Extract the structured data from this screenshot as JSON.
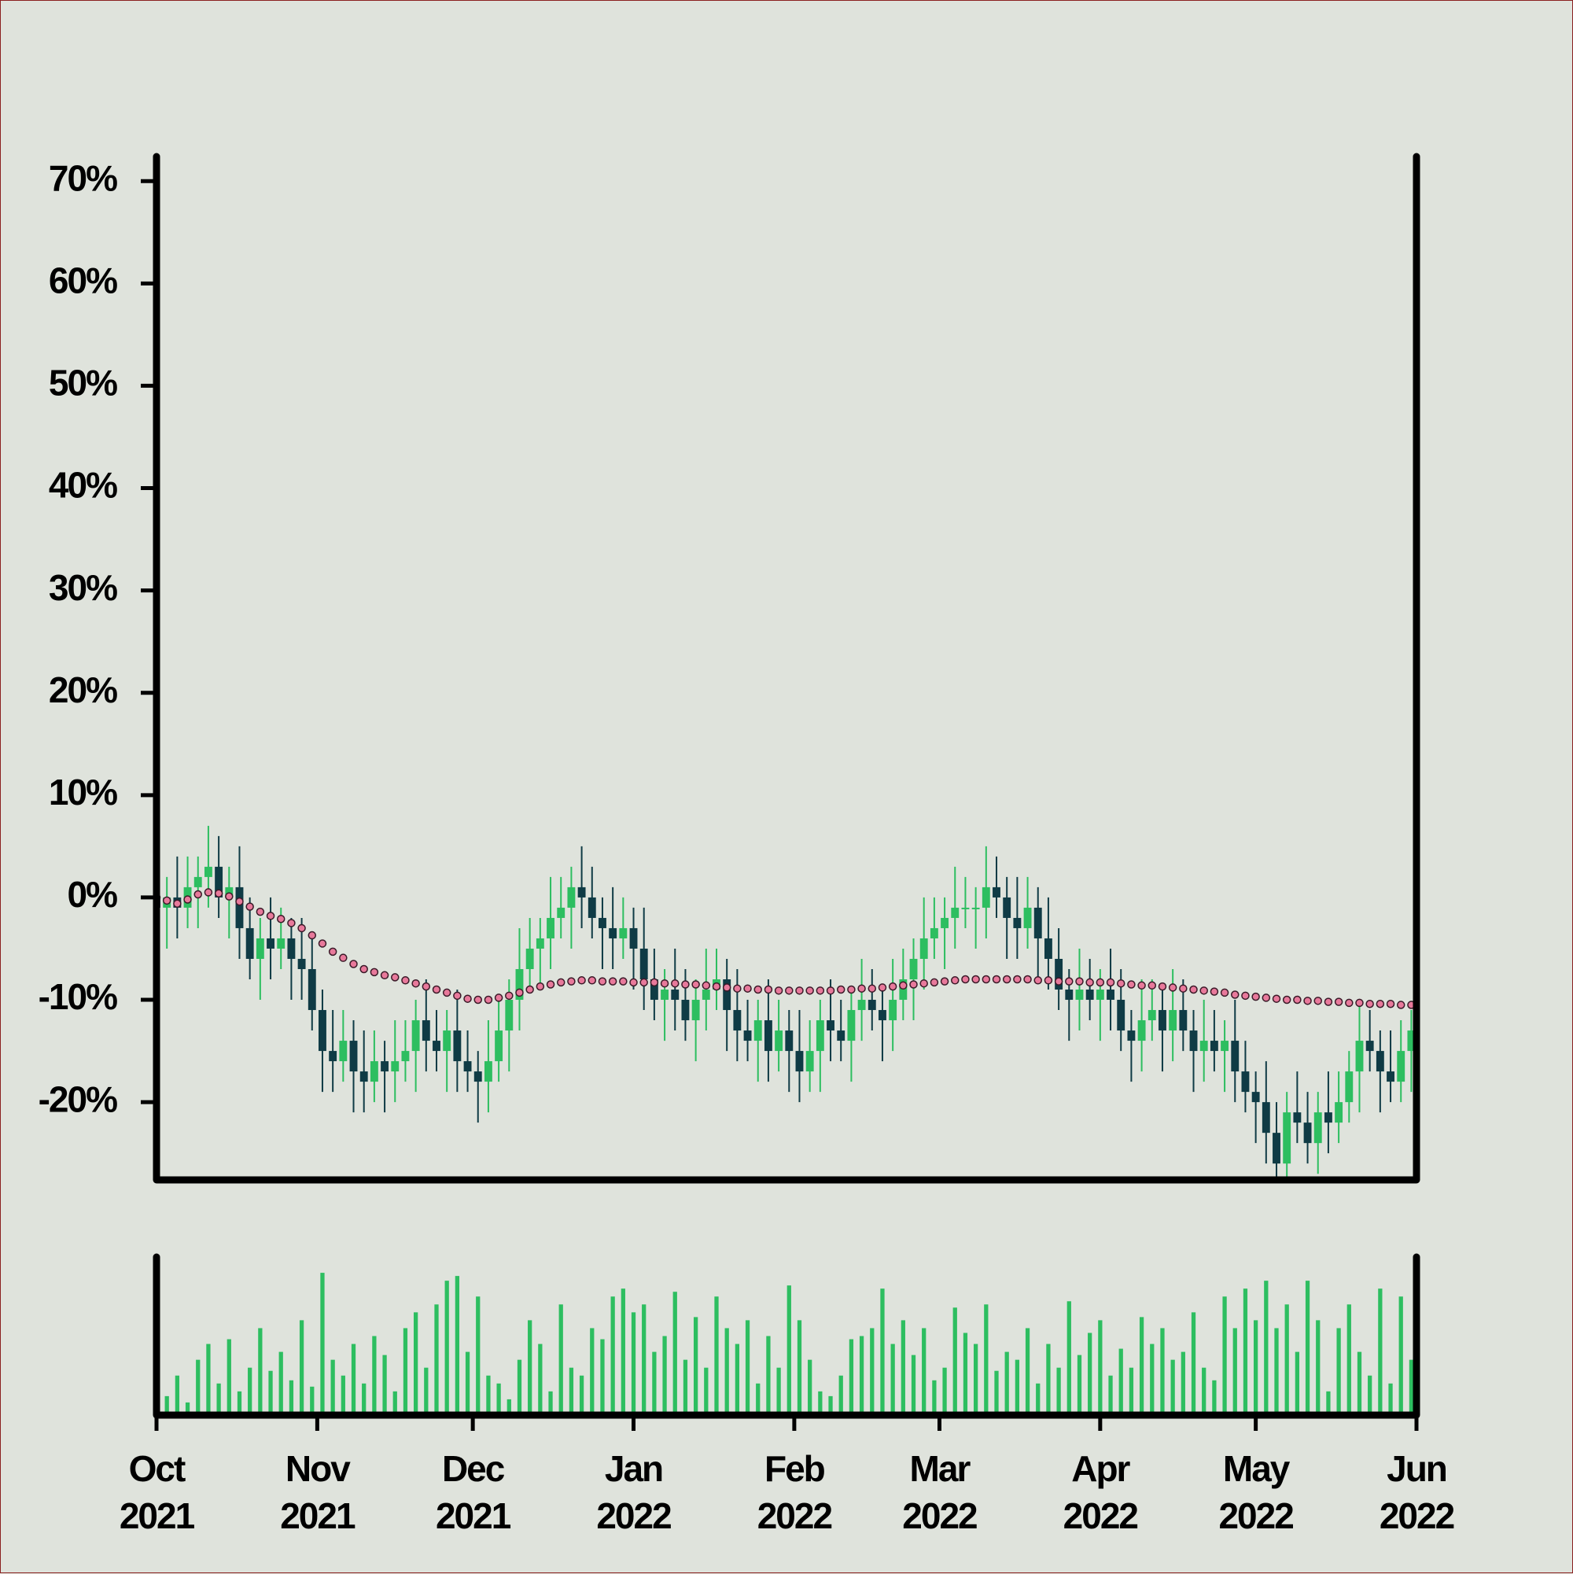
{
  "chart_data": [
    {
      "type": "candlestick",
      "x": [
        0,
        2,
        4,
        6,
        8,
        10,
        12,
        14,
        16,
        18,
        20,
        22,
        24,
        26,
        28,
        30,
        32,
        34,
        36,
        38,
        40,
        42,
        44,
        46,
        48,
        50,
        52,
        54,
        56,
        58,
        60,
        62,
        64,
        66,
        68,
        70,
        72,
        74,
        76,
        78,
        80,
        82,
        84,
        86,
        88,
        90,
        92,
        94,
        96,
        98,
        100,
        102,
        104,
        106,
        108,
        110,
        112,
        114,
        116,
        118,
        120,
        122,
        124,
        126,
        128,
        130,
        132,
        134,
        136,
        138,
        140,
        142,
        144,
        146,
        148,
        150,
        152,
        154,
        156,
        158,
        160,
        162,
        164,
        166,
        168,
        170,
        172,
        174,
        176,
        178,
        180,
        182,
        184,
        186,
        188,
        190,
        192,
        194,
        196,
        198,
        200,
        202,
        204,
        206,
        208,
        210,
        212,
        214,
        216,
        218,
        220,
        222,
        224,
        226,
        228,
        230,
        232,
        234,
        236,
        238,
        240,
        242
      ],
      "open": [
        0,
        -1,
        0,
        -1,
        1,
        2,
        3,
        0,
        1,
        -3,
        -6,
        -4,
        -5,
        -4,
        -6,
        -7,
        -11,
        -15,
        -16,
        -14,
        -17,
        -18,
        -16,
        -17,
        -16,
        -15,
        -12,
        -14,
        -15,
        -13,
        -16,
        -17,
        -18,
        -16,
        -13,
        -10,
        -7,
        -5,
        -4,
        -2,
        -1,
        1,
        0,
        -2,
        -3,
        -4,
        -3,
        -5,
        -8,
        -10,
        -9,
        -10,
        -12,
        -10,
        -9,
        -8,
        -11,
        -13,
        -14,
        -12,
        -15,
        -13,
        -15,
        -17,
        -15,
        -12,
        -13,
        -14,
        -11,
        -10,
        -11,
        -12,
        -10,
        -8,
        -6,
        -4,
        -3,
        -2,
        -1,
        -1,
        -1,
        1,
        0,
        -2,
        -3,
        -1,
        -4,
        -6,
        -9,
        -10,
        -9,
        -10,
        -9,
        -10,
        -13,
        -14,
        -12,
        -11,
        -13,
        -11,
        -13,
        -15,
        -14,
        -15,
        -14,
        -17,
        -19,
        -20,
        -23,
        -26,
        -21,
        -22,
        -24,
        -21,
        -22,
        -20,
        -17,
        -14,
        -15,
        -17,
        -18,
        -15
      ],
      "high": [
        3,
        2,
        4,
        4,
        4,
        7,
        6,
        3,
        5,
        0,
        -2,
        0,
        -1,
        -2,
        -2,
        -4,
        -9,
        -11,
        -11,
        -12,
        -13,
        -13,
        -14,
        -12,
        -12,
        -10,
        -8,
        -11,
        -11,
        -9,
        -13,
        -15,
        -12,
        -10,
        -8,
        -3,
        -2,
        -2,
        2,
        2,
        3,
        5,
        3,
        0,
        1,
        0,
        -1,
        -1,
        -5,
        -7,
        -5,
        -7,
        -8,
        -5,
        -5,
        -6,
        -7,
        -10,
        -10,
        -8,
        -10,
        -11,
        -11,
        -12,
        -10,
        -8,
        -10,
        -9,
        -6,
        -7,
        -9,
        -6,
        -5,
        -4,
        0,
        0,
        0,
        3,
        2,
        1,
        5,
        4,
        2,
        2,
        2,
        1,
        0,
        -3,
        -7,
        -5,
        -6,
        -7,
        -5,
        -7,
        -11,
        -8,
        -8,
        -9,
        -7,
        -8,
        -11,
        -10,
        -11,
        -12,
        -10,
        -14,
        -17,
        -16,
        -20,
        -19,
        -17,
        -19,
        -19,
        -17,
        -17,
        -15,
        -10,
        -11,
        -13,
        -13,
        -12,
        -11
      ],
      "low": [
        -3,
        -5,
        -4,
        -3,
        -3,
        -1,
        -2,
        -4,
        -6,
        -8,
        -10,
        -8,
        -7,
        -10,
        -10,
        -13,
        -19,
        -19,
        -18,
        -21,
        -21,
        -20,
        -21,
        -20,
        -18,
        -19,
        -17,
        -17,
        -19,
        -19,
        -19,
        -22,
        -21,
        -18,
        -17,
        -13,
        -9,
        -9,
        -7,
        -4,
        -5,
        -3,
        -4,
        -7,
        -7,
        -6,
        -9,
        -11,
        -12,
        -14,
        -13,
        -14,
        -16,
        -13,
        -11,
        -15,
        -16,
        -16,
        -18,
        -18,
        -17,
        -19,
        -20,
        -19,
        -19,
        -16,
        -16,
        -18,
        -14,
        -13,
        -16,
        -15,
        -12,
        -12,
        -9,
        -6,
        -7,
        -5,
        -3,
        -5,
        -4,
        -2,
        -6,
        -6,
        -5,
        -8,
        -9,
        -11,
        -14,
        -13,
        -12,
        -14,
        -13,
        -15,
        -18,
        -17,
        -14,
        -17,
        -16,
        -15,
        -19,
        -18,
        -17,
        -19,
        -20,
        -21,
        -24,
        -26,
        -28,
        -30,
        -24,
        -26,
        -27,
        -25,
        -24,
        -22,
        -21,
        -17,
        -21,
        -20,
        -20,
        -19
      ],
      "close": [
        -1,
        0,
        -1,
        1,
        2,
        3,
        0,
        1,
        -3,
        -6,
        -4,
        -5,
        -4,
        -6,
        -7,
        -11,
        -15,
        -16,
        -14,
        -17,
        -18,
        -16,
        -17,
        -16,
        -15,
        -12,
        -14,
        -15,
        -13,
        -16,
        -17,
        -18,
        -16,
        -13,
        -10,
        -7,
        -5,
        -4,
        -2,
        -1,
        1,
        0,
        -2,
        -3,
        -4,
        -3,
        -5,
        -8,
        -10,
        -9,
        -10,
        -12,
        -10,
        -9,
        -8,
        -11,
        -13,
        -14,
        -12,
        -15,
        -13,
        -15,
        -17,
        -15,
        -12,
        -13,
        -14,
        -11,
        -10,
        -11,
        -12,
        -10,
        -8,
        -6,
        -4,
        -3,
        -2,
        -1,
        -1,
        -1,
        1,
        0,
        -2,
        -3,
        -1,
        -4,
        -6,
        -9,
        -10,
        -9,
        -10,
        -9,
        -10,
        -13,
        -14,
        -12,
        -11,
        -13,
        -11,
        -13,
        -15,
        -14,
        -15,
        -14,
        -17,
        -19,
        -20,
        -23,
        -26,
        -21,
        -22,
        -24,
        -21,
        -22,
        -20,
        -17,
        -14,
        -15,
        -17,
        -18,
        -15,
        -13
      ],
      "up_color": "#2dbe60",
      "down_color": "#0f3b45",
      "line": {
        "type": "line",
        "color": "#e8799b",
        "values": [
          0,
          -0.3,
          -0.6,
          -0.2,
          0.3,
          0.5,
          0.4,
          0.1,
          -0.4,
          -0.9,
          -1.4,
          -1.8,
          -2.1,
          -2.5,
          -3.0,
          -3.7,
          -4.5,
          -5.3,
          -5.9,
          -6.5,
          -7.0,
          -7.3,
          -7.6,
          -7.8,
          -8.1,
          -8.4,
          -8.7,
          -9.0,
          -9.3,
          -9.6,
          -9.9,
          -10.0,
          -10.0,
          -9.8,
          -9.6,
          -9.3,
          -9.0,
          -8.7,
          -8.5,
          -8.3,
          -8.2,
          -8.1,
          -8.1,
          -8.2,
          -8.2,
          -8.2,
          -8.3,
          -8.3,
          -8.3,
          -8.4,
          -8.4,
          -8.5,
          -8.5,
          -8.6,
          -8.7,
          -8.8,
          -8.9,
          -8.9,
          -9.0,
          -9.0,
          -9.1,
          -9.1,
          -9.1,
          -9.1,
          -9.1,
          -9.1,
          -9.0,
          -9.0,
          -8.9,
          -8.9,
          -8.8,
          -8.7,
          -8.6,
          -8.5,
          -8.4,
          -8.3,
          -8.2,
          -8.1,
          -8.0,
          -8.0,
          -8.0,
          -8.0,
          -8.0,
          -8.0,
          -8.0,
          -8.1,
          -8.1,
          -8.2,
          -8.2,
          -8.2,
          -8.3,
          -8.3,
          -8.3,
          -8.4,
          -8.5,
          -8.6,
          -8.6,
          -8.7,
          -8.8,
          -8.9,
          -9.0,
          -9.1,
          -9.2,
          -9.3,
          -9.5,
          -9.6,
          -9.7,
          -9.8,
          -9.9,
          -10.0,
          -10.0,
          -10.1,
          -10.1,
          -10.2,
          -10.2,
          -10.3,
          -10.3,
          -10.4,
          -10.4,
          -10.4,
          -10.5,
          -10.5
        ]
      },
      "xlim": [
        0,
        243
      ],
      "ylim": [
        -27.6,
        72.4
      ],
      "yticks": [
        {
          "value": -20,
          "label": "-20%"
        },
        {
          "value": -10,
          "label": "-10%"
        },
        {
          "value": 0,
          "label": "0%"
        },
        {
          "value": 10,
          "label": "10%"
        },
        {
          "value": 20,
          "label": "20%"
        },
        {
          "value": 30,
          "label": "30%"
        },
        {
          "value": 40,
          "label": "40%"
        },
        {
          "value": 50,
          "label": "50%"
        },
        {
          "value": 60,
          "label": "60%"
        },
        {
          "value": 70,
          "label": "70%"
        }
      ]
    },
    {
      "type": "bar",
      "x": [
        0,
        2,
        4,
        6,
        8,
        10,
        12,
        14,
        16,
        18,
        20,
        22,
        24,
        26,
        28,
        30,
        32,
        34,
        36,
        38,
        40,
        42,
        44,
        46,
        48,
        50,
        52,
        54,
        56,
        58,
        60,
        62,
        64,
        66,
        68,
        70,
        72,
        74,
        76,
        78,
        80,
        82,
        84,
        86,
        88,
        90,
        92,
        94,
        96,
        98,
        100,
        102,
        104,
        106,
        108,
        110,
        112,
        114,
        116,
        118,
        120,
        122,
        124,
        126,
        128,
        130,
        132,
        134,
        136,
        138,
        140,
        142,
        144,
        146,
        148,
        150,
        152,
        154,
        156,
        158,
        160,
        162,
        164,
        166,
        168,
        170,
        172,
        174,
        176,
        178,
        180,
        182,
        184,
        186,
        188,
        190,
        192,
        194,
        196,
        198,
        200,
        202,
        204,
        206,
        208,
        210,
        212,
        214,
        216,
        218,
        220,
        222,
        224,
        226,
        228,
        230,
        232,
        234,
        236,
        238,
        240,
        242
      ],
      "values": [
        40,
        12,
        25,
        8,
        35,
        45,
        20,
        48,
        15,
        30,
        55,
        28,
        40,
        22,
        60,
        18,
        90,
        35,
        25,
        45,
        20,
        50,
        38,
        15,
        55,
        65,
        30,
        70,
        85,
        88,
        40,
        75,
        25,
        20,
        10,
        35,
        60,
        45,
        15,
        70,
        30,
        25,
        55,
        48,
        75,
        80,
        65,
        70,
        40,
        50,
        78,
        35,
        62,
        30,
        75,
        55,
        45,
        60,
        20,
        50,
        30,
        82,
        60,
        35,
        15,
        12,
        25,
        48,
        50,
        55,
        80,
        45,
        60,
        38,
        55,
        22,
        30,
        68,
        52,
        45,
        70,
        28,
        40,
        35,
        55,
        20,
        45,
        30,
        72,
        38,
        52,
        60,
        25,
        42,
        30,
        62,
        45,
        55,
        35,
        40,
        65,
        30,
        22,
        75,
        55,
        80,
        60,
        85,
        55,
        70,
        40,
        85,
        60,
        15,
        55,
        70,
        40,
        25,
        80,
        20,
        75,
        35
      ],
      "color": "#2dbe60",
      "xlim": [
        0,
        243
      ],
      "ylim": [
        0,
        100
      ],
      "xticks": [
        {
          "value": 0,
          "label": "Oct 2021"
        },
        {
          "value": 31,
          "label": "Nov 2021"
        },
        {
          "value": 61,
          "label": "Dec 2021"
        },
        {
          "value": 92,
          "label": "Jan 2022"
        },
        {
          "value": 123,
          "label": "Feb 2022"
        },
        {
          "value": 151,
          "label": "Mar 2022"
        },
        {
          "value": 182,
          "label": "Apr 2022"
        },
        {
          "value": 212,
          "label": "May 2022"
        },
        {
          "value": 243,
          "label": "Jun 2022"
        }
      ]
    }
  ]
}
